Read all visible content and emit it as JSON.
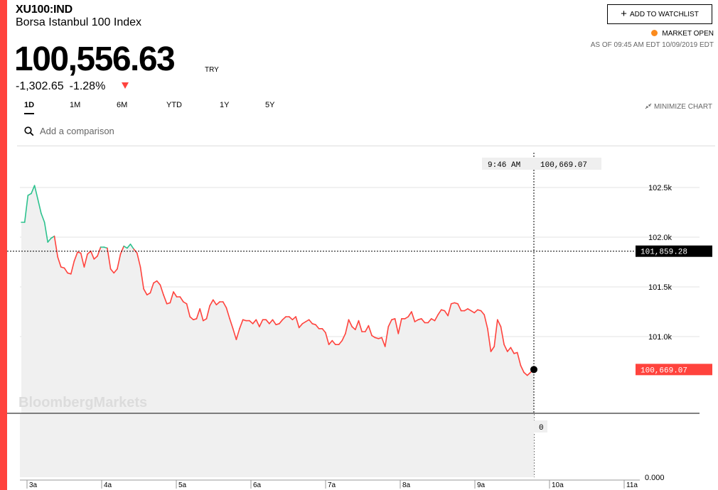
{
  "quote": {
    "ticker": "XU100:IND",
    "name": "Borsa Istanbul 100 Index",
    "price": "100,556.63",
    "currency": "TRY",
    "change": "-1,302.65",
    "change_pct": "-1.28%",
    "add_to_watchlist": "ADD TO WATCHLIST",
    "market_status": "MARKET OPEN",
    "as_of": "AS OF 09:45 AM EDT 10/09/2019 EDT"
  },
  "ranges": [
    "1D",
    "1M",
    "6M",
    "YTD",
    "1Y",
    "5Y"
  ],
  "active_range": "1D",
  "minimize_chart": "MINIMIZE CHART",
  "compare": {
    "placeholder": "Add a comparison"
  },
  "watermark": "BloombergMarkets",
  "colors": {
    "accent": "#ff433d",
    "up": "#2dc28e",
    "down": "#ff433d",
    "orange": "#fb8b1e"
  },
  "chart_data": {
    "type": "line",
    "x_labels": [
      "3a",
      "4a",
      "5a",
      "6a",
      "7a",
      "8a",
      "9a",
      "10a",
      "11a"
    ],
    "y_ticks": [
      {
        "label": "102.5k",
        "value": 102500
      },
      {
        "label": "102.0k",
        "value": 102000
      },
      {
        "label": "101.5k",
        "value": 101500
      },
      {
        "label": "101.0k",
        "value": 101000
      }
    ],
    "ylim": [
      100400,
      102900
    ],
    "previous_close": {
      "label": "101,859.28",
      "value": 101859.28
    },
    "last": {
      "label": "100,669.07",
      "value": 100669.07
    },
    "crosshair": {
      "time": "9:46 AM",
      "value_label": "100,669.07",
      "volume_label": "0"
    },
    "volume_axis_label": "0.000",
    "series": [
      {
        "values": [
          102150,
          102150,
          102420,
          102440,
          102520,
          102380,
          102240,
          102150,
          101950,
          101990,
          102010,
          101800,
          101700,
          101690,
          101640,
          101630,
          101760,
          101850,
          101840,
          101700,
          101830,
          101860,
          101780,
          101810,
          101900,
          101900,
          101890,
          101680,
          101640,
          101680,
          101830,
          101910,
          101890,
          101930,
          101880,
          101840,
          101700,
          101480,
          101420,
          101440,
          101540,
          101560,
          101520,
          101420,
          101330,
          101340,
          101450,
          101400,
          101400,
          101350,
          101330,
          101200,
          101170,
          101180,
          101280,
          101160,
          101180,
          101310,
          101370,
          101320,
          101350,
          101350,
          101290,
          101180,
          101080,
          100970,
          101080,
          101170,
          101160,
          101160,
          101130,
          101170,
          101100,
          101170,
          101170,
          101130,
          101170,
          101120,
          101130,
          101170,
          101200,
          101200,
          101170,
          101200,
          101090,
          101130,
          101150,
          101170,
          101130,
          101120,
          101080,
          101080,
          101040,
          100920,
          100960,
          100920,
          100920,
          100960,
          101030,
          101170,
          101100,
          101070,
          101160,
          101050,
          101050,
          101110,
          101010,
          100990,
          100980,
          100990,
          100900,
          101100,
          101170,
          101180,
          101030,
          101180,
          101180,
          101200,
          101250,
          101150,
          101170,
          101180,
          101140,
          101140,
          101180,
          101160,
          101220,
          101270,
          101260,
          101210,
          101330,
          101340,
          101330,
          101260,
          101260,
          101280,
          101260,
          101240,
          101270,
          101260,
          101220,
          101080,
          100850,
          100900,
          101170,
          101100,
          100920,
          100850,
          100890,
          100830,
          100840,
          100710,
          100640,
          100610,
          100640,
          100670
        ]
      }
    ]
  }
}
